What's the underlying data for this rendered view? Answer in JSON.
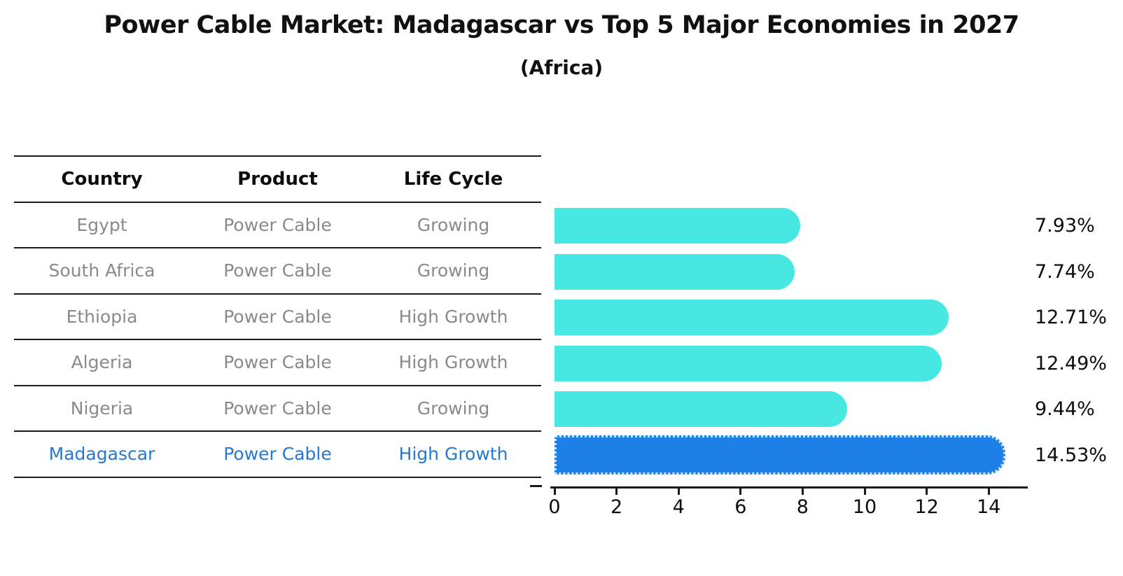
{
  "title": "Power Cable Market: Madagascar vs Top 5 Major Economies in 2027",
  "subtitle": "(Africa)",
  "table": {
    "headers": [
      "Country",
      "Product",
      "Life Cycle"
    ],
    "rows": [
      {
        "country": "Egypt",
        "product": "Power Cable",
        "life_cycle": "Growing",
        "highlight": false
      },
      {
        "country": "South Africa",
        "product": "Power Cable",
        "life_cycle": "Growing",
        "highlight": false
      },
      {
        "country": "Ethiopia",
        "product": "Power Cable",
        "life_cycle": "High Growth",
        "highlight": false
      },
      {
        "country": "Algeria",
        "product": "Power Cable",
        "life_cycle": "High Growth",
        "highlight": false
      },
      {
        "country": "Nigeria",
        "product": "Power Cable",
        "life_cycle": "Growing",
        "highlight": false
      },
      {
        "country": "Madagascar",
        "product": "Power Cable",
        "life_cycle": "High Growth",
        "highlight": true
      }
    ]
  },
  "chart_data": {
    "type": "bar",
    "orientation": "horizontal",
    "title": "Power Cable Market: Madagascar vs Top 5 Major Economies in 2027",
    "subtitle": "(Africa)",
    "categories": [
      "Egypt",
      "South Africa",
      "Ethiopia",
      "Algeria",
      "Nigeria",
      "Madagascar"
    ],
    "values": [
      7.93,
      7.74,
      12.71,
      12.49,
      9.44,
      14.53
    ],
    "value_labels": [
      "7.93%",
      "7.74%",
      "12.71%",
      "12.49%",
      "9.44%",
      "14.53%"
    ],
    "xlim": [
      0,
      15.3
    ],
    "xticks": [
      0,
      2,
      4,
      6,
      8,
      10,
      12,
      14
    ],
    "grid": false,
    "legend": "none",
    "bar_color": "#46e8e1",
    "highlight_color": "#1e80e6",
    "highlight_border_color": "#cfe8ff",
    "highlight_index": 5
  },
  "colors": {
    "heading_text": "#111111",
    "row_text": "#8a8a8a",
    "highlight_text": "#2878ce",
    "line": "#1a1a1a",
    "value_text": "#0d0d0d"
  }
}
